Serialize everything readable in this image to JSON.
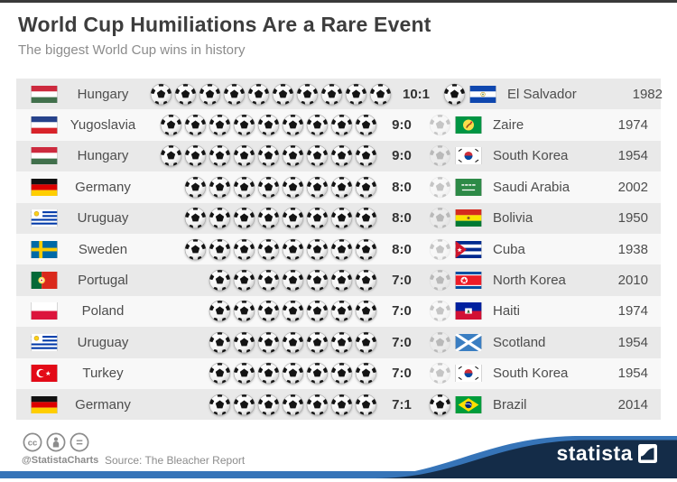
{
  "header": {
    "title": "World Cup Humiliations Are a Rare Event",
    "subtitle": "The biggest World Cup wins in history"
  },
  "table": {
    "rows": [
      {
        "winner": "Hungary",
        "winner_flag": "hungary",
        "score": "10:1",
        "goals_for": 10,
        "goals_against": 1,
        "loser": "El Salvador",
        "loser_flag": "el_salvador",
        "year": "1982"
      },
      {
        "winner": "Yugoslavia",
        "winner_flag": "yugoslavia",
        "score": "9:0",
        "goals_for": 9,
        "goals_against": 0,
        "loser": "Zaire",
        "loser_flag": "zaire",
        "year": "1974"
      },
      {
        "winner": "Hungary",
        "winner_flag": "hungary",
        "score": "9:0",
        "goals_for": 9,
        "goals_against": 0,
        "loser": "South Korea",
        "loser_flag": "south_korea",
        "year": "1954"
      },
      {
        "winner": "Germany",
        "winner_flag": "germany",
        "score": "8:0",
        "goals_for": 8,
        "goals_against": 0,
        "loser": "Saudi Arabia",
        "loser_flag": "saudi_arabia",
        "year": "2002"
      },
      {
        "winner": "Uruguay",
        "winner_flag": "uruguay",
        "score": "8:0",
        "goals_for": 8,
        "goals_against": 0,
        "loser": "Bolivia",
        "loser_flag": "bolivia",
        "year": "1950"
      },
      {
        "winner": "Sweden",
        "winner_flag": "sweden",
        "score": "8:0",
        "goals_for": 8,
        "goals_against": 0,
        "loser": "Cuba",
        "loser_flag": "cuba",
        "year": "1938"
      },
      {
        "winner": "Portugal",
        "winner_flag": "portugal",
        "score": "7:0",
        "goals_for": 7,
        "goals_against": 0,
        "loser": "North Korea",
        "loser_flag": "north_korea",
        "year": "2010"
      },
      {
        "winner": "Poland",
        "winner_flag": "poland",
        "score": "7:0",
        "goals_for": 7,
        "goals_against": 0,
        "loser": "Haiti",
        "loser_flag": "haiti",
        "year": "1974"
      },
      {
        "winner": "Uruguay",
        "winner_flag": "uruguay",
        "score": "7:0",
        "goals_for": 7,
        "goals_against": 0,
        "loser": "Scotland",
        "loser_flag": "scotland",
        "year": "1954"
      },
      {
        "winner": "Turkey",
        "winner_flag": "turkey",
        "score": "7:0",
        "goals_for": 7,
        "goals_against": 0,
        "loser": "South Korea",
        "loser_flag": "south_korea",
        "year": "1954"
      },
      {
        "winner": "Germany",
        "winner_flag": "germany",
        "score": "7:1",
        "goals_for": 7,
        "goals_against": 1,
        "loser": "Brazil",
        "loser_flag": "brazil",
        "year": "2014"
      }
    ]
  },
  "footer": {
    "handle": "@StatistaCharts",
    "source": "Source: The Bleacher Report",
    "brand": "statista",
    "license_icons": [
      "cc-icon",
      "attribution-person-icon",
      "equals-icon"
    ]
  },
  "colors": {
    "accent_blue": "#3674b8",
    "brand_navy": "#142c48",
    "row_alt": "#e9e9e9",
    "row_base": "#f8f8f8",
    "text_dark": "#3d3d3d",
    "text_gray": "#8c8c8c"
  },
  "chart_data": {
    "type": "table",
    "title": "World Cup Humiliations Are a Rare Event",
    "subtitle": "The biggest World Cup wins in history",
    "source": "The Bleacher Report",
    "columns": [
      "winner",
      "score",
      "loser",
      "year"
    ],
    "rows": [
      [
        "Hungary",
        "10:1",
        "El Salvador",
        1982
      ],
      [
        "Yugoslavia",
        "9:0",
        "Zaire",
        1974
      ],
      [
        "Hungary",
        "9:0",
        "South Korea",
        1954
      ],
      [
        "Germany",
        "8:0",
        "Saudi Arabia",
        2002
      ],
      [
        "Uruguay",
        "8:0",
        "Bolivia",
        1950
      ],
      [
        "Sweden",
        "8:0",
        "Cuba",
        1938
      ],
      [
        "Portugal",
        "7:0",
        "North Korea",
        2010
      ],
      [
        "Poland",
        "7:0",
        "Haiti",
        1974
      ],
      [
        "Uruguay",
        "7:0",
        "Scotland",
        1954
      ],
      [
        "Turkey",
        "7:0",
        "South Korea",
        1954
      ],
      [
        "Germany",
        "7:1",
        "Brazil",
        2014
      ]
    ]
  }
}
